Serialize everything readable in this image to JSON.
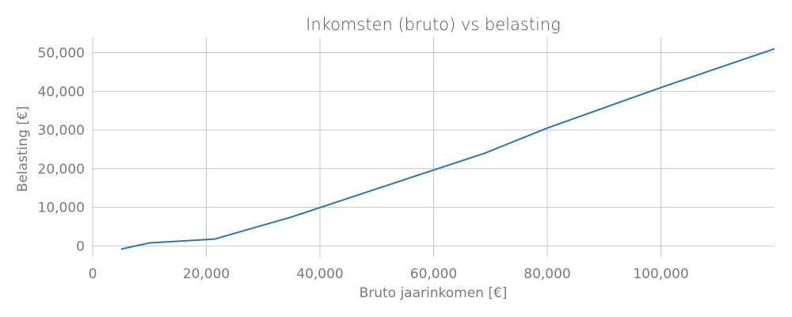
{
  "chart_data": {
    "type": "line",
    "title": "Inkomsten (bruto) vs belasting",
    "xlabel": "Bruto jaarinkomen [€]",
    "ylabel": "Belasting [€]",
    "xlim": [
      0,
      120000
    ],
    "ylim": [
      -3000,
      54000
    ],
    "grid": true,
    "x_ticks": [
      {
        "value": 0,
        "label": "0"
      },
      {
        "value": 20000,
        "label": "20,000"
      },
      {
        "value": 40000,
        "label": "40,000"
      },
      {
        "value": 60000,
        "label": "60,000"
      },
      {
        "value": 80000,
        "label": "80,000"
      },
      {
        "value": 100000,
        "label": "100,000"
      }
    ],
    "y_ticks": [
      {
        "value": 0,
        "label": "0"
      },
      {
        "value": 10000,
        "label": "10,000"
      },
      {
        "value": 20000,
        "label": "20,000"
      },
      {
        "value": 30000,
        "label": "30,000"
      },
      {
        "value": 40000,
        "label": "40,000"
      },
      {
        "value": 50000,
        "label": "50,000"
      }
    ],
    "series": [
      {
        "color": "#2a76b1",
        "x": [
          5000,
          10000,
          21500,
          35000,
          50000,
          69000,
          80000,
          100000,
          120000
        ],
        "y": [
          -800,
          800,
          1800,
          7500,
          14800,
          24000,
          30500,
          41000,
          51000
        ]
      }
    ]
  }
}
